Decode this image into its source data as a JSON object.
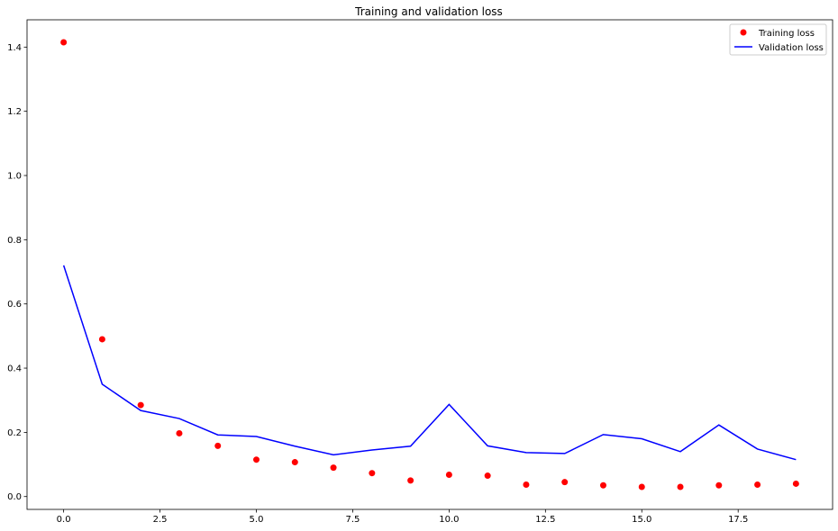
{
  "chart_data": {
    "type": "line",
    "title": "Training and validation loss",
    "xlabel": "",
    "ylabel": "",
    "xlim": [
      -0.95,
      19.95
    ],
    "ylim": [
      -0.04,
      1.485
    ],
    "x_ticks": [
      0.0,
      2.5,
      5.0,
      7.5,
      10.0,
      12.5,
      15.0,
      17.5
    ],
    "x_tick_labels": [
      "0.0",
      "2.5",
      "5.0",
      "7.5",
      "10.0",
      "12.5",
      "15.0",
      "17.5"
    ],
    "y_ticks": [
      0.0,
      0.2,
      0.4,
      0.6,
      0.8,
      1.0,
      1.2,
      1.4
    ],
    "y_tick_labels": [
      "0.0",
      "0.2",
      "0.4",
      "0.6",
      "0.8",
      "1.0",
      "1.2",
      "1.4"
    ],
    "grid": false,
    "legend_position": "top-right",
    "x": [
      0,
      1,
      2,
      3,
      4,
      5,
      6,
      7,
      8,
      9,
      10,
      11,
      12,
      13,
      14,
      15,
      16,
      17,
      18,
      19
    ],
    "series": [
      {
        "name": "Training loss",
        "style": "points",
        "color": "#ff0000",
        "values": [
          1.415,
          0.49,
          0.285,
          0.197,
          0.158,
          0.115,
          0.107,
          0.09,
          0.073,
          0.05,
          0.068,
          0.065,
          0.037,
          0.045,
          0.035,
          0.03,
          0.03,
          0.035,
          0.037,
          0.04
        ]
      },
      {
        "name": "Validation loss",
        "style": "line",
        "color": "#0000ff",
        "values": [
          0.72,
          0.35,
          0.268,
          0.243,
          0.192,
          0.187,
          0.157,
          0.13,
          0.145,
          0.157,
          0.287,
          0.158,
          0.137,
          0.134,
          0.193,
          0.18,
          0.14,
          0.223,
          0.148,
          0.115
        ]
      }
    ]
  }
}
